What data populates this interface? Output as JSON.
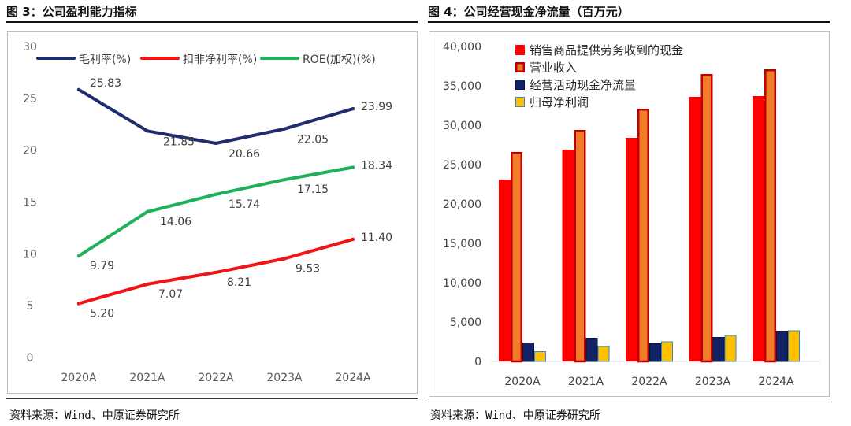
{
  "left_panel": {
    "title": "图 3：公司盈利能力指标",
    "source": "资料来源：Wind、中原证券研究所"
  },
  "right_panel": {
    "title": "图 4：公司经营现金净流量（百万元）",
    "source": "资料来源：Wind、中原证券研究所"
  },
  "colors": {
    "gross_margin": "#1f2d6e",
    "net_margin": "#f01414",
    "roe": "#1fb05a",
    "cash_sales": "#ff0000",
    "revenue_fill": "#f07c2a",
    "revenue_border": "#c00000",
    "op_cash_flow": "#112266",
    "net_profit": "#ffc000"
  },
  "chart_data": [
    {
      "type": "line",
      "categories": [
        "2020A",
        "2021A",
        "2022A",
        "2023A",
        "2024A"
      ],
      "ylim": [
        0,
        30
      ],
      "yticks": [
        "0",
        "5",
        "10",
        "15",
        "20",
        "25",
        "30"
      ],
      "legend_position": "top",
      "grid": false,
      "series": [
        {
          "name": "毛利率(%)",
          "values": [
            25.83,
            21.85,
            20.66,
            22.05,
            23.99
          ],
          "labels": [
            "25.83",
            "21.85",
            "20.66",
            "22.05",
            "23.99"
          ]
        },
        {
          "name": "扣非净利率(%)",
          "values": [
            5.2,
            7.07,
            8.21,
            9.53,
            11.4
          ],
          "labels": [
            "5.20",
            "7.07",
            "8.21",
            "9.53",
            "11.40"
          ]
        },
        {
          "name": "ROE(加权)(%)",
          "values": [
            9.79,
            14.06,
            15.74,
            17.15,
            18.34
          ],
          "labels": [
            "9.79",
            "14.06",
            "15.74",
            "17.15",
            "18.34"
          ]
        }
      ]
    },
    {
      "type": "bar",
      "categories": [
        "2020A",
        "2021A",
        "2022A",
        "2023A",
        "2024A"
      ],
      "ylim": [
        0,
        40000
      ],
      "yticks": [
        "0",
        "5,000",
        "10,000",
        "15,000",
        "20,000",
        "25,000",
        "30,000",
        "35,000",
        "40,000"
      ],
      "legend_position": "top-left",
      "grid": false,
      "series": [
        {
          "name": "销售商品提供劳务收到的现金",
          "values": [
            23100,
            26900,
            28400,
            33600,
            33700
          ]
        },
        {
          "name": "营业收入",
          "values": [
            26600,
            29400,
            32100,
            36500,
            37100
          ]
        },
        {
          "name": "经营活动现金净流量",
          "values": [
            2400,
            3000,
            2300,
            3100,
            3900
          ]
        },
        {
          "name": "归母净利润",
          "values": [
            1300,
            1950,
            2550,
            3350,
            3950
          ]
        }
      ]
    }
  ]
}
